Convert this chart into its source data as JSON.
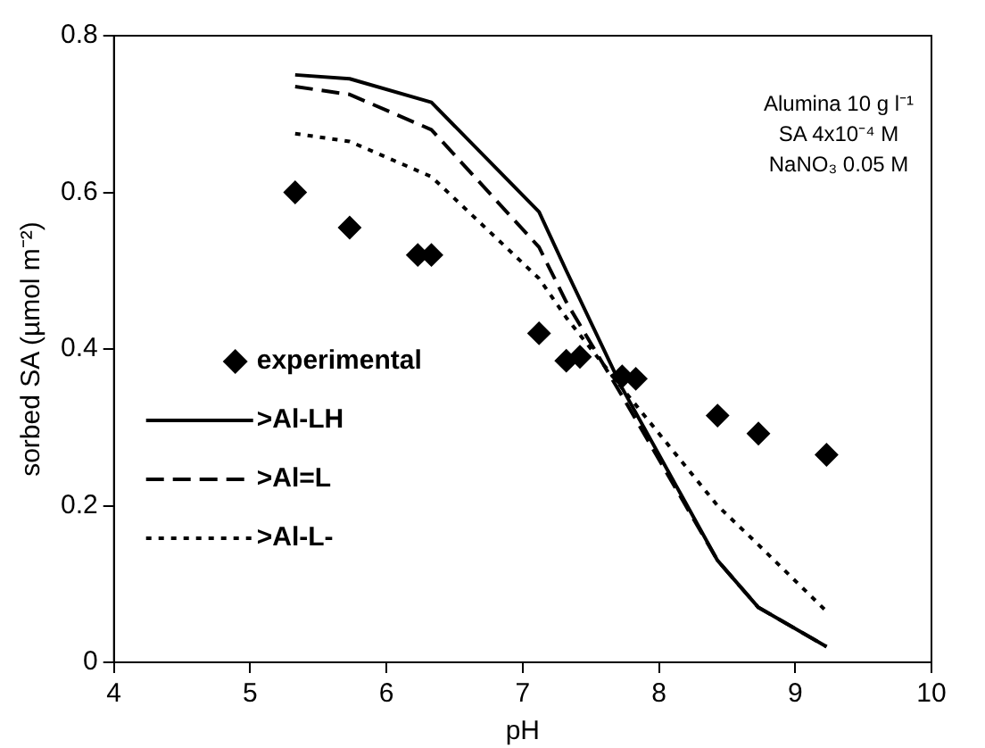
{
  "chart_data": {
    "type": "line",
    "xlabel": "pH",
    "ylabel": "sorbed SA (µmol m⁻²)",
    "xlim": [
      4,
      10
    ],
    "xticks": [
      4,
      5,
      6,
      7,
      8,
      9,
      10
    ],
    "ylim": [
      0,
      0.8
    ],
    "yticks": [
      0,
      0.2,
      0.4,
      0.6,
      0.8
    ],
    "grid": false,
    "legend": "left",
    "annotations": [
      "Alumina 10 g l⁻¹",
      "SA 4x10⁻⁴ M",
      "NaNO₃ 0.05 M"
    ],
    "series": [
      {
        "name": "experimental",
        "type": "scatter",
        "marker": "diamond",
        "color": "#000000",
        "x": [
          5.33,
          5.73,
          6.23,
          6.33,
          7.12,
          7.32,
          7.42,
          7.73,
          7.83,
          8.43,
          8.73,
          9.23
        ],
        "values": [
          0.6,
          0.555,
          0.52,
          0.52,
          0.42,
          0.385,
          0.39,
          0.365,
          0.362,
          0.315,
          0.292,
          0.265
        ]
      },
      {
        "name": ">Al-LH",
        "type": "line",
        "line_style": "solid",
        "color": "#000000",
        "x": [
          5.33,
          5.73,
          6.33,
          7.12,
          7.32,
          7.73,
          8.43,
          8.73,
          9.23
        ],
        "values": [
          0.75,
          0.745,
          0.715,
          0.575,
          0.5,
          0.35,
          0.13,
          0.07,
          0.02
        ]
      },
      {
        "name": ">Al=L",
        "type": "line",
        "line_style": "dashed",
        "color": "#000000",
        "x": [
          5.33,
          5.73,
          6.33,
          7.12,
          7.32,
          7.73,
          8.43,
          8.73,
          9.23
        ],
        "values": [
          0.735,
          0.725,
          0.68,
          0.53,
          0.46,
          0.34,
          0.13,
          0.07,
          0.02
        ]
      },
      {
        "name": ">Al-L-",
        "type": "line",
        "line_style": "dotted",
        "color": "#000000",
        "x": [
          5.33,
          5.73,
          6.33,
          7.12,
          7.32,
          7.73,
          8.43,
          8.73,
          9.23
        ],
        "values": [
          0.675,
          0.665,
          0.62,
          0.49,
          0.44,
          0.35,
          0.2,
          0.15,
          0.065
        ]
      }
    ]
  }
}
